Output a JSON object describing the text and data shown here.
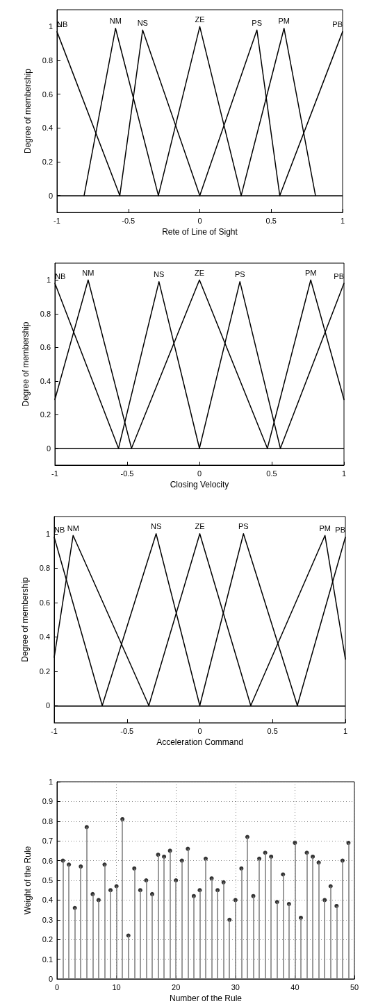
{
  "chart_data": [
    {
      "type": "line",
      "xlabel": "Rete of Line of Sight",
      "ylabel": "Degree of membership",
      "xlim": [
        -1,
        1
      ],
      "ylim": [
        -0.1,
        1.1
      ],
      "xticks": [
        -1,
        -0.5,
        0,
        0.5,
        1
      ],
      "yticks": [
        0,
        0.2,
        0.4,
        0.6,
        0.8,
        1
      ],
      "grid": false,
      "legend": false,
      "marker": "none",
      "line_style": "solid",
      "ref_lines": [
        {
          "axis": "y",
          "value": 0,
          "color": "#000000"
        }
      ],
      "series": [
        {
          "name": "NB",
          "color": "#000000",
          "x": [
            -1,
            -0.56
          ],
          "values": [
            0.97,
            0
          ]
        },
        {
          "name": "NM",
          "color": "#000000",
          "x": [
            -0.81,
            -0.59,
            -0.29
          ],
          "values": [
            0,
            0.99,
            0
          ]
        },
        {
          "name": "NS",
          "color": "#000000",
          "x": [
            -0.56,
            -0.4,
            0
          ],
          "values": [
            0,
            0.98,
            0
          ]
        },
        {
          "name": "ZE",
          "color": "#000000",
          "x": [
            -0.29,
            0,
            0.29
          ],
          "values": [
            0,
            1,
            0
          ]
        },
        {
          "name": "PS",
          "color": "#000000",
          "x": [
            0,
            0.4,
            0.56
          ],
          "values": [
            0,
            0.98,
            0
          ]
        },
        {
          "name": "PM",
          "color": "#000000",
          "x": [
            0.29,
            0.59,
            0.81
          ],
          "values": [
            0,
            0.99,
            0
          ]
        },
        {
          "name": "PB",
          "color": "#000000",
          "x": [
            0.56,
            1
          ],
          "values": [
            0,
            0.97
          ]
        }
      ]
    },
    {
      "type": "line",
      "xlabel": "Closing Velocity",
      "ylabel": "Degree of membership",
      "xlim": [
        -1,
        1
      ],
      "ylim": [
        -0.1,
        1.1
      ],
      "xticks": [
        -1,
        -0.5,
        0,
        0.5,
        1
      ],
      "yticks": [
        0,
        0.2,
        0.4,
        0.6,
        0.8,
        1
      ],
      "grid": false,
      "legend": false,
      "marker": "none",
      "line_style": "solid",
      "ref_lines": [
        {
          "axis": "y",
          "value": 0,
          "color": "#000000"
        }
      ],
      "series": [
        {
          "name": "NB",
          "color": "#000000",
          "x": [
            -1,
            -0.56
          ],
          "values": [
            0.98,
            0
          ]
        },
        {
          "name": "NM",
          "color": "#000000",
          "x": [
            -1,
            -0.77,
            -0.47
          ],
          "values": [
            0.29,
            1,
            0
          ]
        },
        {
          "name": "NS",
          "color": "#000000",
          "x": [
            -0.56,
            -0.28,
            0
          ],
          "values": [
            0,
            0.99,
            0
          ]
        },
        {
          "name": "ZE",
          "color": "#000000",
          "x": [
            -0.47,
            0,
            0.47
          ],
          "values": [
            0,
            1,
            0
          ]
        },
        {
          "name": "PS",
          "color": "#000000",
          "x": [
            0,
            0.28,
            0.56
          ],
          "values": [
            0,
            0.99,
            0
          ]
        },
        {
          "name": "PM",
          "color": "#000000",
          "x": [
            0.47,
            0.77,
            1
          ],
          "values": [
            0,
            1,
            0.29
          ]
        },
        {
          "name": "PB",
          "color": "#000000",
          "x": [
            0.56,
            1
          ],
          "values": [
            0,
            0.98
          ]
        }
      ]
    },
    {
      "type": "line",
      "xlabel": "Acceleration Command",
      "ylabel": "Degree of membership",
      "xlim": [
        -1,
        1
      ],
      "ylim": [
        -0.1,
        1.1
      ],
      "xticks": [
        -1,
        -0.5,
        0,
        0.5,
        1
      ],
      "yticks": [
        0,
        0.2,
        0.4,
        0.6,
        0.8,
        1
      ],
      "grid": false,
      "legend": false,
      "marker": "none",
      "line_style": "solid",
      "ref_lines": [
        {
          "axis": "y",
          "value": 0,
          "color": "#000000"
        }
      ],
      "series": [
        {
          "name": "NB",
          "color": "#000000",
          "x": [
            -1,
            -0.67
          ],
          "values": [
            0.98,
            0
          ]
        },
        {
          "name": "NM",
          "color": "#000000",
          "x": [
            -1,
            -0.87,
            -0.35
          ],
          "values": [
            0.28,
            0.99,
            0
          ]
        },
        {
          "name": "NS",
          "color": "#000000",
          "x": [
            -0.67,
            -0.3,
            0
          ],
          "values": [
            0,
            1,
            0
          ]
        },
        {
          "name": "ZE",
          "color": "#000000",
          "x": [
            -0.35,
            0,
            0.35
          ],
          "values": [
            0,
            1,
            0
          ]
        },
        {
          "name": "PS",
          "color": "#000000",
          "x": [
            0,
            0.3,
            0.67
          ],
          "values": [
            0,
            1,
            0
          ]
        },
        {
          "name": "PM",
          "color": "#000000",
          "x": [
            0.35,
            0.86,
            1
          ],
          "values": [
            0,
            0.99,
            0.27
          ]
        },
        {
          "name": "PB",
          "color": "#000000",
          "x": [
            0.67,
            1
          ],
          "values": [
            0,
            0.98
          ]
        }
      ]
    },
    {
      "type": "lollipop",
      "xlabel": "Number of the Rule",
      "ylabel": "Weight of the Rule",
      "xlim": [
        0,
        50
      ],
      "ylim": [
        0,
        1
      ],
      "xticks": [
        0,
        10,
        20,
        30,
        40,
        50
      ],
      "yticks": [
        0,
        0.1,
        0.2,
        0.3,
        0.4,
        0.5,
        0.6,
        0.7,
        0.8,
        0.9,
        1
      ],
      "grid": true,
      "legend": false,
      "marker": "circle",
      "series": [
        {
          "color": "#000000",
          "x": [
            1,
            2,
            3,
            4,
            5,
            6,
            7,
            8,
            9,
            10,
            11,
            12,
            13,
            14,
            15,
            16,
            17,
            18,
            19,
            20,
            21,
            22,
            23,
            24,
            25,
            26,
            27,
            28,
            29,
            30,
            31,
            32,
            33,
            34,
            35,
            36,
            37,
            38,
            39,
            40,
            41,
            42,
            43,
            44,
            45,
            46,
            47,
            48,
            49
          ],
          "values": [
            0.6,
            0.58,
            0.36,
            0.57,
            0.77,
            0.43,
            0.4,
            0.58,
            0.45,
            0.47,
            0.81,
            0.22,
            0.56,
            0.45,
            0.5,
            0.43,
            0.63,
            0.62,
            0.65,
            0.5,
            0.6,
            0.66,
            0.42,
            0.45,
            0.61,
            0.51,
            0.45,
            0.49,
            0.3,
            0.4,
            0.56,
            0.72,
            0.42,
            0.61,
            0.64,
            0.62,
            0.39,
            0.53,
            0.38,
            0.69,
            0.31,
            0.64,
            0.62,
            0.59,
            0.4,
            0.47,
            0.37,
            0.6,
            0.69
          ]
        }
      ]
    }
  ]
}
